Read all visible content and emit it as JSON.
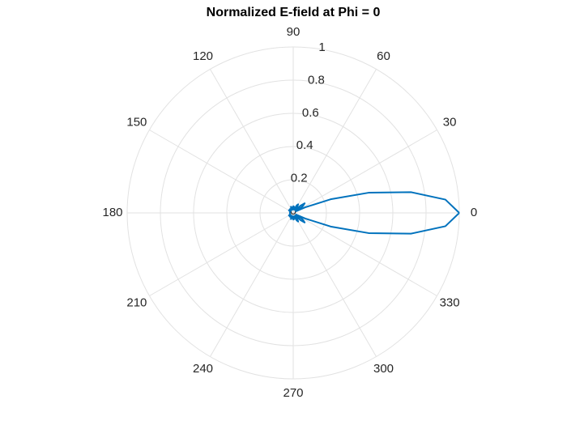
{
  "chart_data": {
    "type": "polar",
    "title": "Normalized E-field at Phi = 0",
    "theta": [
      0,
      5,
      10,
      15,
      20,
      25,
      30,
      35,
      40,
      45,
      50,
      55,
      60,
      65,
      70,
      75,
      80,
      85,
      90,
      95,
      100,
      105,
      110,
      115,
      120,
      125,
      130,
      135,
      140,
      145,
      150,
      155,
      160,
      165,
      170,
      175,
      180,
      185,
      190,
      195,
      200,
      205,
      210,
      215,
      220,
      225,
      230,
      235,
      240,
      245,
      250,
      255,
      260,
      265,
      270,
      275,
      280,
      285,
      290,
      295,
      300,
      305,
      310,
      315,
      320,
      325,
      330,
      335,
      340,
      345,
      350,
      355,
      360
    ],
    "r": [
      1,
      0.92,
      0.72,
      0.47,
      0.24,
      0.08,
      0.02,
      0.07,
      0.09,
      0.06,
      0.02,
      0.04,
      0.06,
      0.05,
      0.03,
      0.02,
      0.03,
      0.04,
      0.04,
      0.03,
      0.02,
      0.03,
      0.04,
      0.03,
      0.02,
      0.02,
      0.03,
      0.03,
      0.02,
      0.02,
      0.03,
      0.02,
      0.02,
      0.02,
      0.02,
      0.02,
      0.02,
      0.02,
      0.02,
      0.02,
      0.02,
      0.02,
      0.03,
      0.02,
      0.02,
      0.03,
      0.03,
      0.02,
      0.02,
      0.03,
      0.04,
      0.03,
      0.02,
      0.03,
      0.04,
      0.04,
      0.03,
      0.02,
      0.03,
      0.05,
      0.06,
      0.04,
      0.02,
      0.06,
      0.09,
      0.07,
      0.02,
      0.08,
      0.24,
      0.47,
      0.72,
      0.92,
      1
    ],
    "color": "#0072bd",
    "rlim": [
      0,
      1
    ],
    "rticks": [
      0,
      0.2,
      0.4,
      0.6,
      0.8,
      1
    ],
    "thetaticks": [
      0,
      30,
      60,
      90,
      120,
      150,
      180,
      210,
      240,
      270,
      300,
      330
    ],
    "grid": true
  }
}
